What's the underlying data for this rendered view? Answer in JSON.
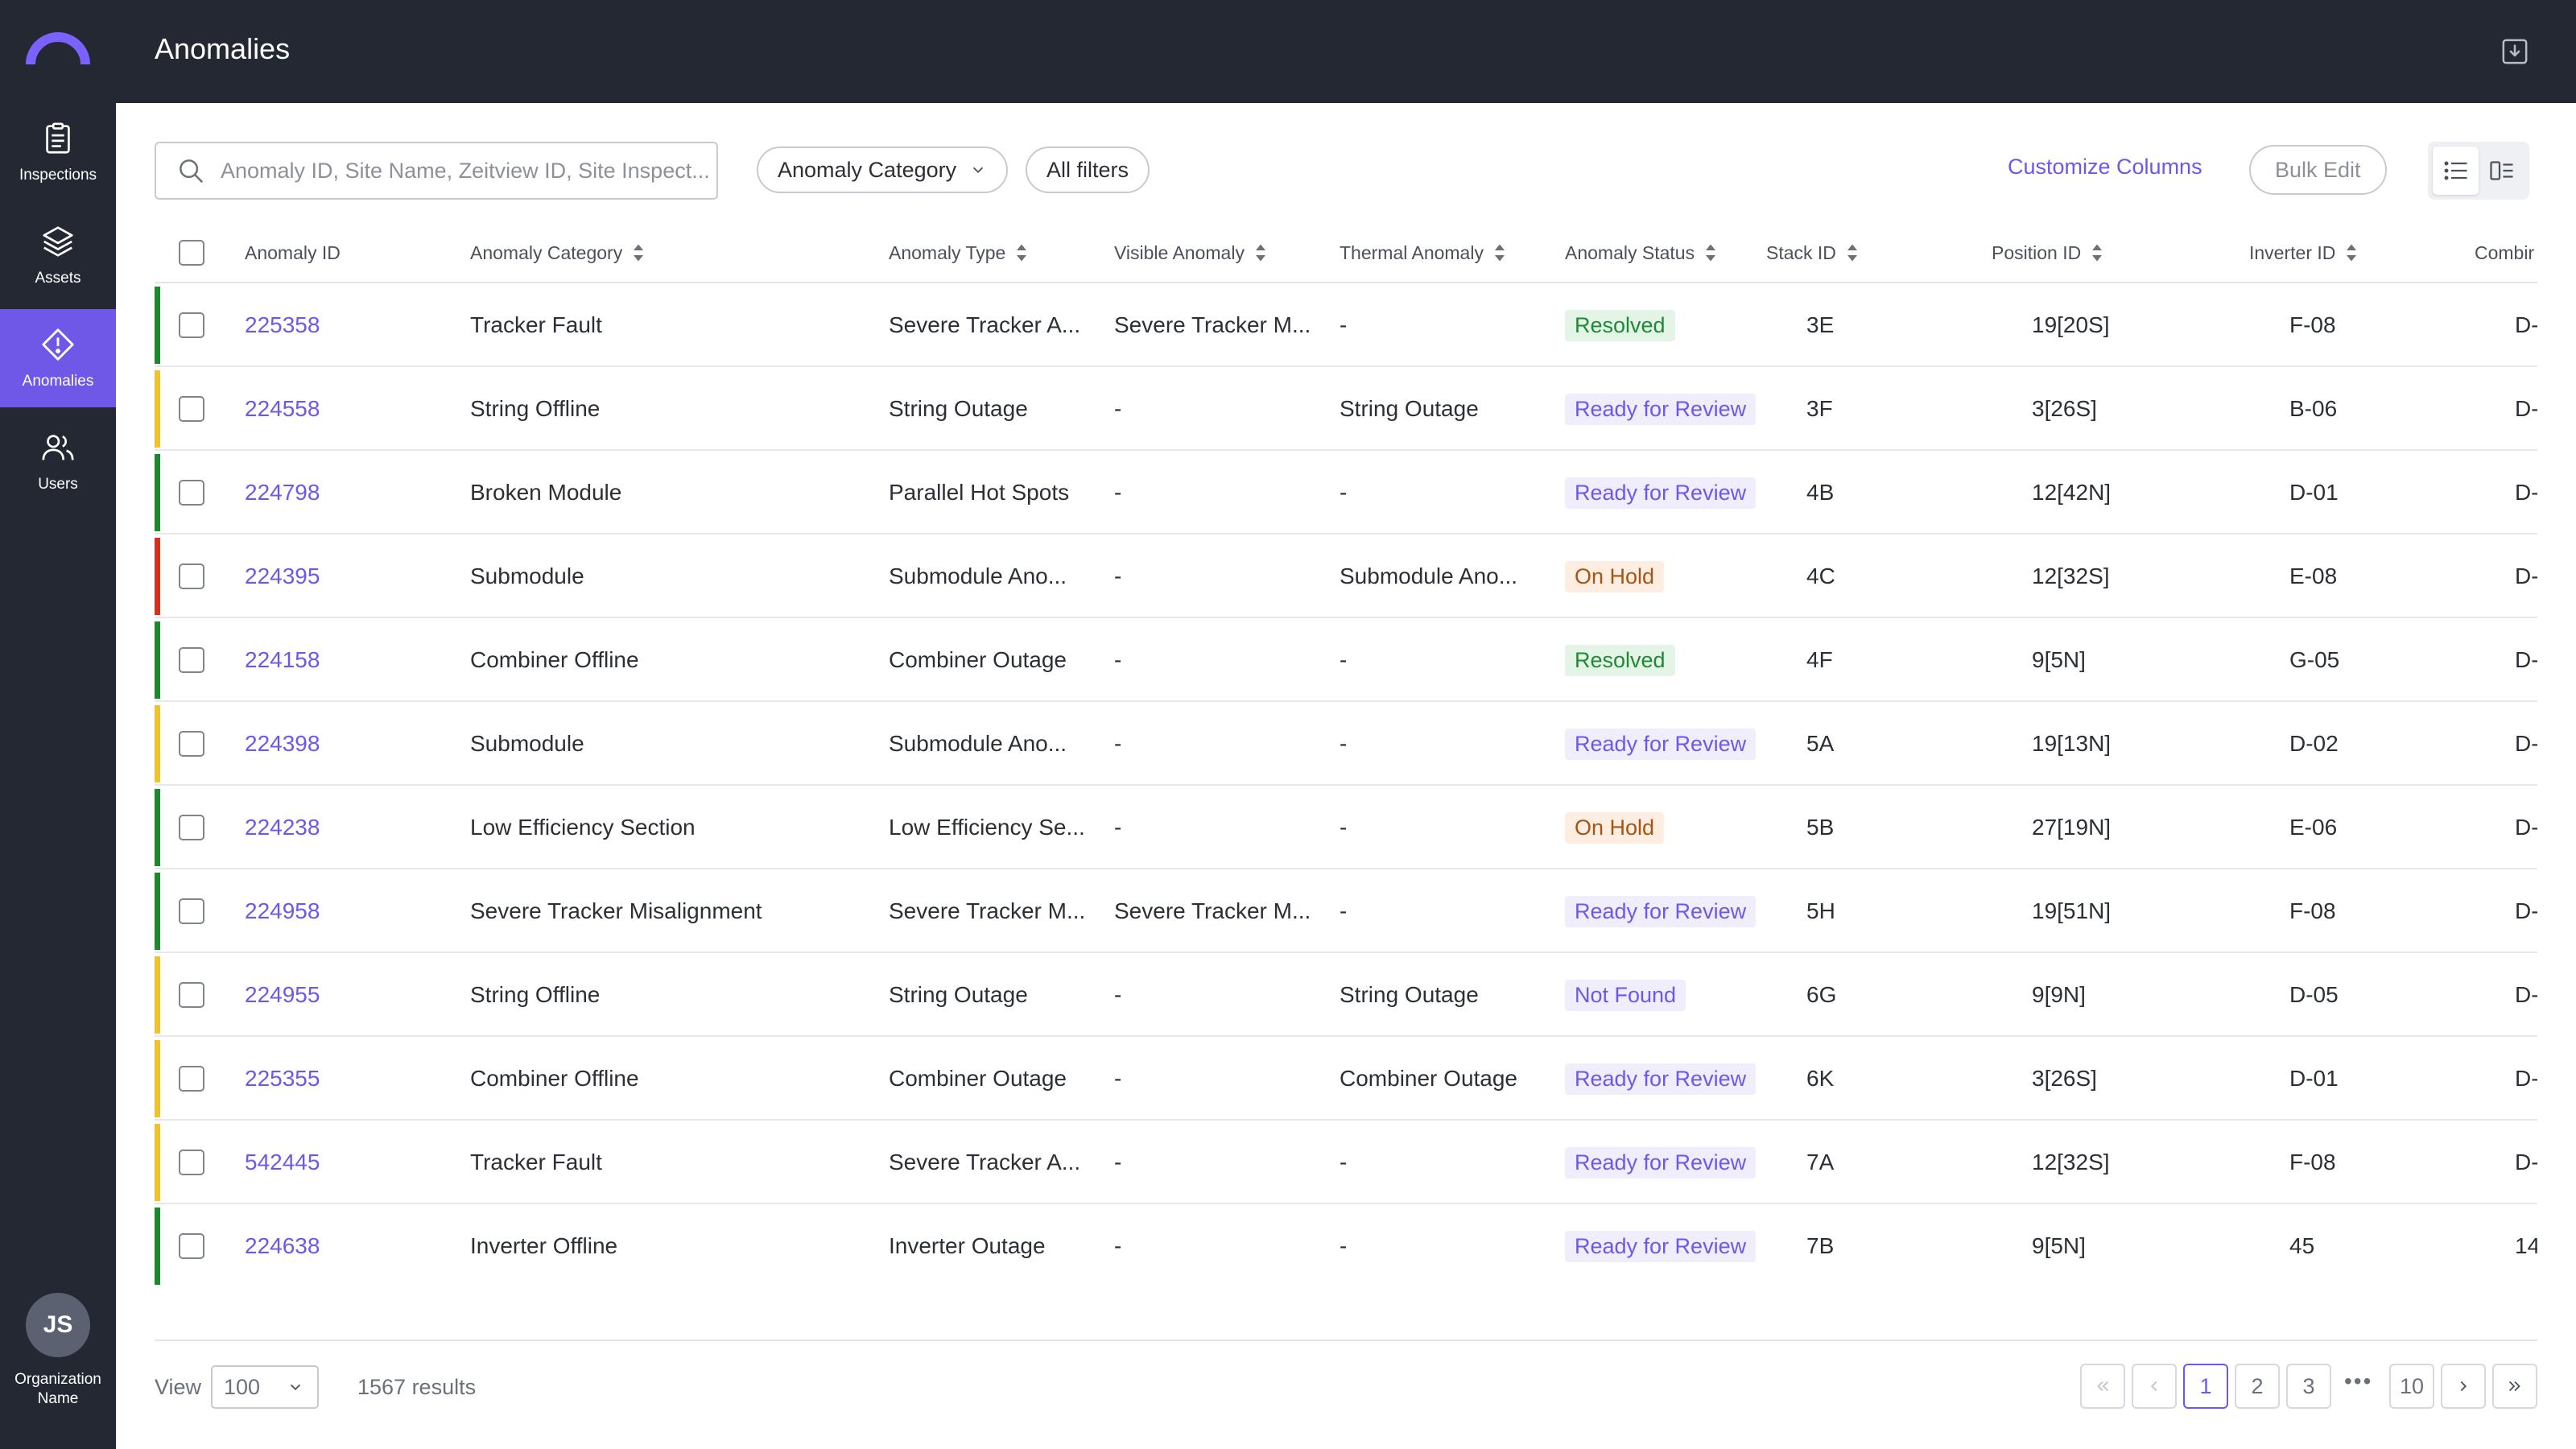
{
  "sidebar": {
    "items": [
      {
        "label": "Inspections",
        "icon": "clipboard-icon"
      },
      {
        "label": "Assets",
        "icon": "layers-icon"
      },
      {
        "label": "Anomalies",
        "icon": "alert-diamond-icon",
        "active": true
      },
      {
        "label": "Users",
        "icon": "users-icon"
      }
    ],
    "avatar_initials": "JS",
    "org_name": "Organization Name"
  },
  "header": {
    "title": "Anomalies",
    "export_icon": "download-box-icon"
  },
  "toolbar": {
    "search_placeholder": "Anomaly ID, Site Name, Zeitview ID, Site Inspect...",
    "category_filter": "Anomaly Category",
    "all_filters": "All filters",
    "customize_columns": "Customize Columns",
    "bulk_edit": "Bulk Edit"
  },
  "table": {
    "columns": [
      "Anomaly ID",
      "Anomaly Category",
      "Anomaly Type",
      "Visible Anomaly",
      "Thermal Anomaly",
      "Anomaly Status",
      "Stack ID",
      "Position ID",
      "Inverter ID",
      "Combir"
    ],
    "rows": [
      {
        "severity": "green",
        "id": "225358",
        "category": "Tracker Fault",
        "type": "Severe Tracker A...",
        "visible": "Severe Tracker M...",
        "thermal": "-",
        "status": "Resolved",
        "stack": "3E",
        "position": "19[20S]",
        "inverter": "F-08",
        "combiner": "D-"
      },
      {
        "severity": "yellow",
        "id": "224558",
        "category": "String Offline",
        "type": "String Outage",
        "visible": "-",
        "thermal": "String Outage",
        "status": "Ready for Review",
        "stack": "3F",
        "position": "3[26S]",
        "inverter": "B-06",
        "combiner": "D-"
      },
      {
        "severity": "green",
        "id": "224798",
        "category": "Broken Module",
        "type": "Parallel Hot Spots",
        "visible": "-",
        "thermal": "-",
        "status": "Ready for Review",
        "stack": "4B",
        "position": "12[42N]",
        "inverter": "D-01",
        "combiner": "D-"
      },
      {
        "severity": "red",
        "id": "224395",
        "category": "Submodule",
        "type": "Submodule Ano...",
        "visible": "-",
        "thermal": "Submodule Ano...",
        "status": "On Hold",
        "stack": "4C",
        "position": "12[32S]",
        "inverter": "E-08",
        "combiner": "D-"
      },
      {
        "severity": "green",
        "id": "224158",
        "category": "Combiner Offline",
        "type": "Combiner Outage",
        "visible": "-",
        "thermal": "-",
        "status": "Resolved",
        "stack": "4F",
        "position": "9[5N]",
        "inverter": "G-05",
        "combiner": "D-"
      },
      {
        "severity": "yellow",
        "id": "224398",
        "category": "Submodule",
        "type": "Submodule Ano...",
        "visible": "-",
        "thermal": "-",
        "status": "Ready for Review",
        "stack": "5A",
        "position": "19[13N]",
        "inverter": "D-02",
        "combiner": "D-"
      },
      {
        "severity": "green",
        "id": "224238",
        "category": "Low Efficiency Section",
        "type": "Low Efficiency Se...",
        "visible": "-",
        "thermal": "-",
        "status": "On Hold",
        "stack": "5B",
        "position": "27[19N]",
        "inverter": "E-06",
        "combiner": "D-"
      },
      {
        "severity": "green",
        "id": "224958",
        "category": "Severe Tracker Misalignment",
        "type": "Severe Tracker M...",
        "visible": "Severe Tracker M...",
        "thermal": "-",
        "status": "Ready for Review",
        "stack": "5H",
        "position": "19[51N]",
        "inverter": "F-08",
        "combiner": "D-"
      },
      {
        "severity": "yellow",
        "id": "224955",
        "category": "String Offline",
        "type": "String Outage",
        "visible": "-",
        "thermal": "String Outage",
        "status": "Not Found",
        "stack": "6G",
        "position": "9[9N]",
        "inverter": "D-05",
        "combiner": "D-"
      },
      {
        "severity": "yellow",
        "id": "225355",
        "category": "Combiner Offline",
        "type": "Combiner Outage",
        "visible": "-",
        "thermal": "Combiner Outage",
        "status": "Ready for Review",
        "stack": "6K",
        "position": "3[26S]",
        "inverter": "D-01",
        "combiner": "D-"
      },
      {
        "severity": "yellow",
        "id": "542445",
        "category": "Tracker Fault",
        "type": "Severe Tracker A...",
        "visible": "-",
        "thermal": "-",
        "status": "Ready for Review",
        "stack": "7A",
        "position": "12[32S]",
        "inverter": "F-08",
        "combiner": "D-"
      },
      {
        "severity": "green",
        "id": "224638",
        "category": "Inverter Offline",
        "type": "Inverter Outage",
        "visible": "-",
        "thermal": "-",
        "status": "Ready for Review",
        "stack": "7B",
        "position": "9[5N]",
        "inverter": "45",
        "combiner": "14"
      }
    ]
  },
  "footer": {
    "view_label": "View",
    "page_size": "100",
    "results": "1567 results",
    "pages": [
      "1",
      "2",
      "3",
      "10"
    ],
    "ellipsis": "•••",
    "current_page": "1"
  },
  "colors": {
    "accent": "#6f58e8",
    "sidebar_bg": "#232833",
    "severity_green": "#1a8a2a",
    "severity_yellow": "#f2c12e",
    "severity_red": "#d9301c"
  }
}
